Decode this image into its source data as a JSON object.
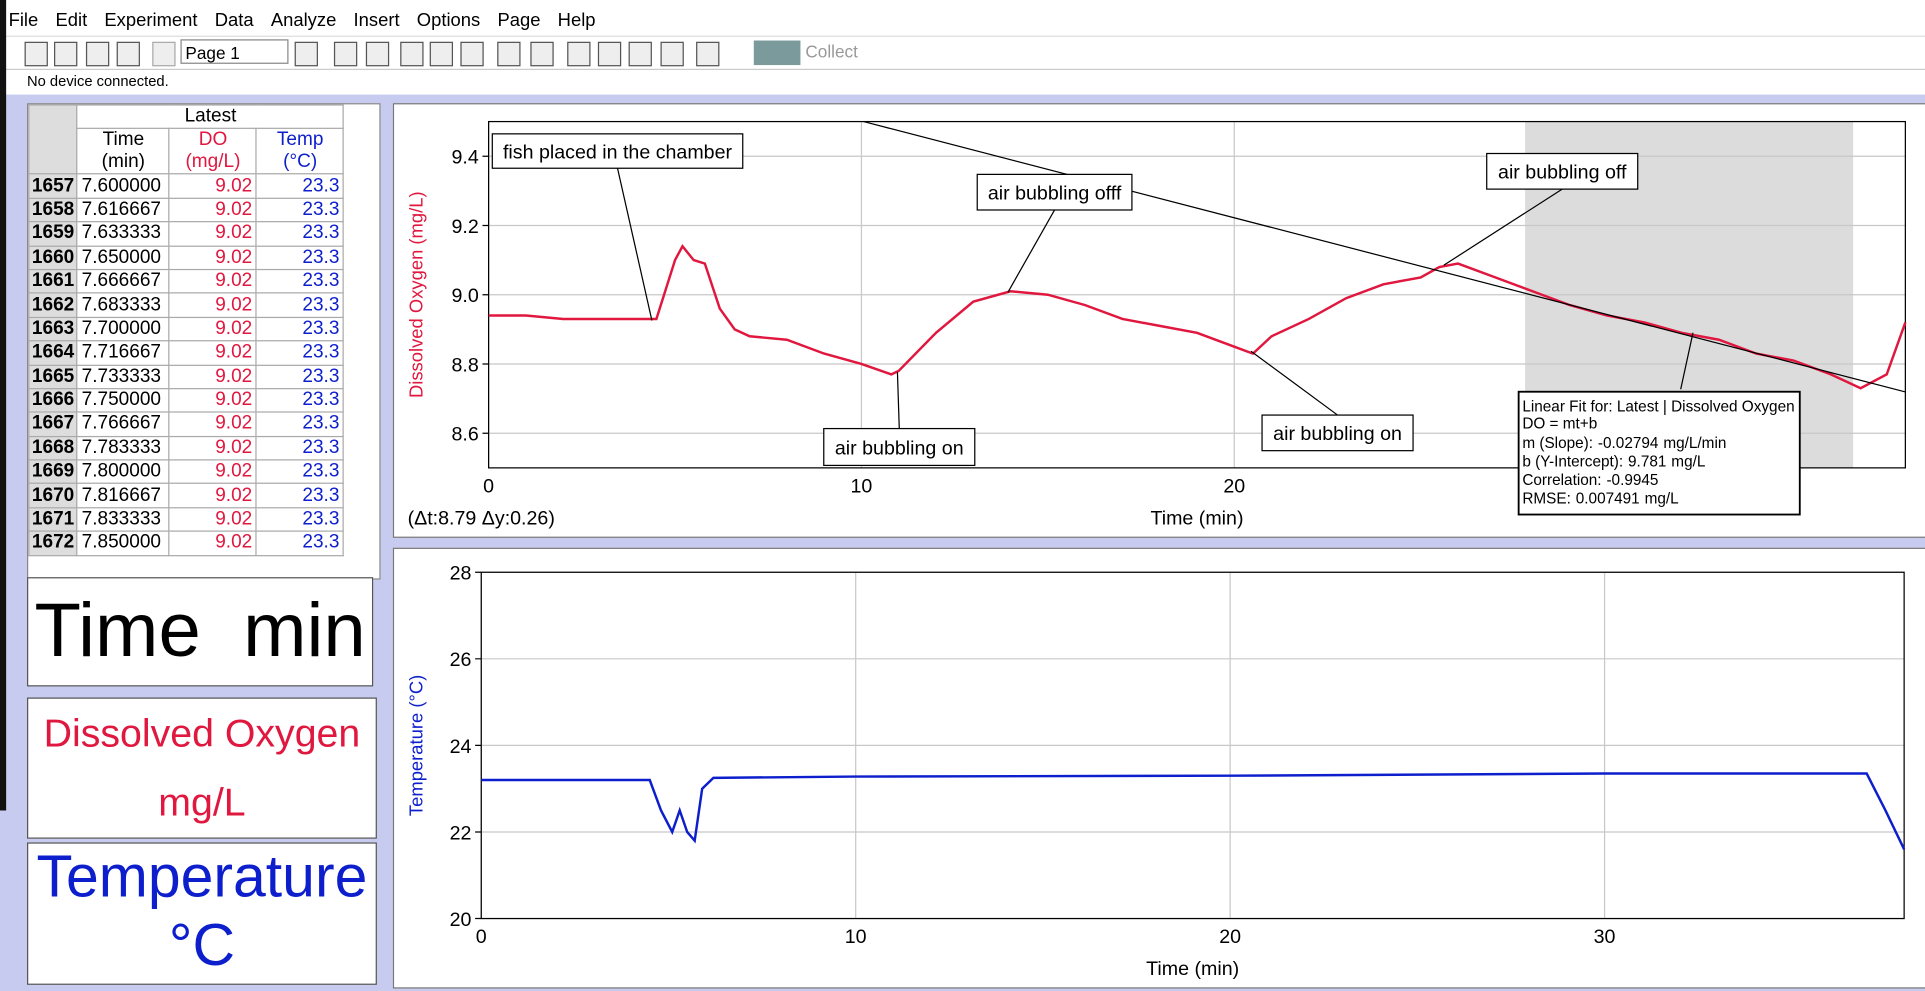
{
  "menu": [
    "File",
    "Edit",
    "Experiment",
    "Data",
    "Analyze",
    "Insert",
    "Options",
    "Page",
    "Help"
  ],
  "toolbar": {
    "page": "Page 1",
    "collect": "Collect"
  },
  "status": "No device connected.",
  "table": {
    "group": "Latest",
    "columns": [
      {
        "name": "Time",
        "unit": "(min)"
      },
      {
        "name": "DO",
        "unit": "(mg/L)"
      },
      {
        "name": "Temp",
        "unit": "(°C)"
      }
    ],
    "rows": [
      [
        1657,
        "7.600000",
        9.02,
        23.3
      ],
      [
        1658,
        "7.616667",
        9.02,
        23.3
      ],
      [
        1659,
        "7.633333",
        9.02,
        23.3
      ],
      [
        1660,
        "7.650000",
        9.02,
        23.3
      ],
      [
        1661,
        "7.666667",
        9.02,
        23.3
      ],
      [
        1662,
        "7.683333",
        9.02,
        23.3
      ],
      [
        1663,
        "7.700000",
        9.02,
        23.3
      ],
      [
        1664,
        "7.716667",
        9.02,
        23.3
      ],
      [
        1665,
        "7.733333",
        9.02,
        23.3
      ],
      [
        1666,
        "7.750000",
        9.02,
        23.3
      ],
      [
        1667,
        "7.766667",
        9.02,
        23.3
      ],
      [
        1668,
        "7.783333",
        9.02,
        23.3
      ],
      [
        1669,
        "7.800000",
        9.02,
        23.3
      ],
      [
        1670,
        "7.816667",
        9.02,
        23.3
      ],
      [
        1671,
        "7.833333",
        9.02,
        23.3
      ],
      [
        1672,
        "7.850000",
        9.02,
        23.3
      ]
    ]
  },
  "meters": [
    {
      "label": "Time",
      "unit": "min"
    },
    {
      "label": "Dissolved Oxygen",
      "unit": "mg/L"
    },
    {
      "label": "Temperature",
      "unit": "°C"
    }
  ],
  "chart_data": [
    {
      "type": "line",
      "ylabel": "Dissolved Oxygen (mg/L)",
      "xlabel": "Time (min)",
      "xlim": [
        0,
        38
      ],
      "ylim": [
        8.5,
        9.5
      ],
      "xticks": [
        0,
        10,
        20
      ],
      "yticks": [
        8.6,
        8.8,
        {
          "value": 9,
          "label": "9.0"
        },
        9.2,
        9.4
      ],
      "grid": true,
      "series": [
        {
          "color": "#e0173e",
          "x": [
            0,
            1,
            2,
            3,
            4,
            4.5,
            5,
            5.2,
            5.5,
            5.8,
            6.2,
            6.6,
            7,
            8,
            9,
            10,
            10.8,
            11,
            12,
            13,
            14,
            15,
            16,
            17,
            18,
            19,
            20,
            20.5,
            21,
            22,
            23,
            24,
            25,
            25.5,
            26,
            27,
            28,
            29,
            30,
            31,
            32,
            33,
            34,
            35,
            36,
            36.8,
            37.5,
            38
          ],
          "values": [
            8.94,
            8.94,
            8.93,
            8.93,
            8.93,
            8.93,
            9.1,
            9.14,
            9.1,
            9.09,
            8.96,
            8.9,
            8.88,
            8.87,
            8.83,
            8.8,
            8.77,
            8.78,
            8.89,
            8.98,
            9.01,
            9.0,
            8.97,
            8.93,
            8.91,
            8.89,
            8.85,
            8.83,
            8.88,
            8.93,
            8.99,
            9.03,
            9.05,
            9.08,
            9.09,
            9.05,
            9.01,
            8.97,
            8.94,
            8.92,
            8.89,
            8.87,
            8.83,
            8.81,
            8.77,
            8.73,
            8.77,
            8.92
          ]
        }
      ],
      "annotations": [
        "fish placed in the chamber",
        "air bubbling offf",
        "air bubbling on",
        "air bubbling off",
        "air bubbling on"
      ],
      "delta": "(Δt:8.79 Δy:0.26)",
      "selection_x": [
        27.8,
        36.6
      ],
      "fit": {
        "title": "Linear Fit for: Latest | Dissolved Oxygen",
        "equation": "DO = mt+b",
        "slope": {
          "label": "m (Slope):",
          "value": -0.02794,
          "unit": "mg/L/min"
        },
        "intercept": {
          "label": "b (Y-Intercept):",
          "value": 9.781,
          "unit": "mg/L"
        },
        "correlation": {
          "label": "Correlation:",
          "value": -0.9945
        },
        "rmse": {
          "label": "RMSE:",
          "value": 0.007491,
          "unit": "mg/L"
        }
      }
    },
    {
      "type": "line",
      "ylabel": "Temperature (°C)",
      "xlabel": "Time (min)",
      "xlim": [
        0,
        38
      ],
      "ylim": [
        20,
        28
      ],
      "xticks": [
        0,
        10,
        20,
        30
      ],
      "yticks": [
        20,
        22,
        24,
        26,
        28
      ],
      "grid": true,
      "series": [
        {
          "color": "#0d1fcc",
          "x": [
            0,
            4.5,
            4.8,
            5.1,
            5.3,
            5.5,
            5.7,
            5.9,
            6.2,
            10,
            20,
            30,
            37,
            37.5,
            38
          ],
          "values": [
            23.2,
            23.2,
            22.5,
            22.0,
            22.5,
            22.0,
            21.8,
            23.0,
            23.25,
            23.28,
            23.3,
            23.35,
            23.35,
            22.5,
            21.6
          ]
        }
      ]
    }
  ]
}
